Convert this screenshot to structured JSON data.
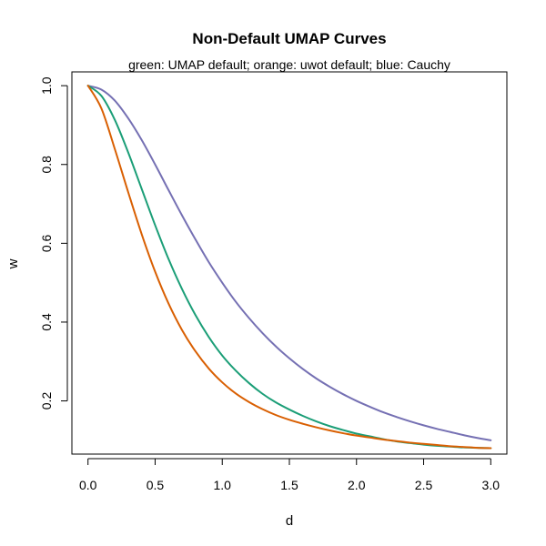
{
  "chart_data": {
    "type": "line",
    "title": "Non-Default UMAP Curves",
    "subtitle": "green: UMAP default; orange: uwot default; blue: Cauchy",
    "xlabel": "d",
    "ylabel": "w",
    "xlim": [
      -0.12,
      3.12
    ],
    "ylim": [
      0.065,
      1.035
    ],
    "xticks": [
      0.0,
      0.5,
      1.0,
      1.5,
      2.0,
      2.5,
      3.0
    ],
    "xtick_labels": [
      "0.0",
      "0.5",
      "1.0",
      "1.5",
      "2.0",
      "2.5",
      "3.0"
    ],
    "yticks": [
      0.2,
      0.4,
      0.6,
      0.8,
      1.0
    ],
    "ytick_labels": [
      "0.2",
      "0.4",
      "0.6",
      "0.8",
      "1.0"
    ],
    "grid": false,
    "legend": "none",
    "x": [
      0.0,
      0.1,
      0.2,
      0.3,
      0.4,
      0.5,
      0.6,
      0.7,
      0.8,
      0.9,
      1.0,
      1.1,
      1.2,
      1.3,
      1.4,
      1.5,
      1.6,
      1.7,
      1.8,
      1.9,
      2.0,
      2.1,
      2.2,
      2.3,
      2.4,
      2.5,
      2.6,
      2.7,
      2.8,
      2.9,
      3.0
    ],
    "series": [
      {
        "color": "#7570B3",
        "values": [
          1.0,
          0.99,
          0.962,
          0.917,
          0.862,
          0.8,
          0.735,
          0.671,
          0.61,
          0.552,
          0.5,
          0.452,
          0.41,
          0.372,
          0.338,
          0.308,
          0.281,
          0.257,
          0.236,
          0.217,
          0.2,
          0.185,
          0.171,
          0.159,
          0.148,
          0.138,
          0.129,
          0.121,
          0.113,
          0.106,
          0.1
        ]
      },
      {
        "color": "#1B9E77",
        "values": [
          1.0,
          0.974,
          0.913,
          0.83,
          0.738,
          0.646,
          0.56,
          0.484,
          0.418,
          0.362,
          0.315,
          0.277,
          0.245,
          0.218,
          0.196,
          0.178,
          0.162,
          0.148,
          0.136,
          0.126,
          0.117,
          0.11,
          0.103,
          0.097,
          0.093,
          0.089,
          0.086,
          0.084,
          0.082,
          0.081,
          0.08
        ]
      },
      {
        "color": "#D95F02",
        "values": [
          1.0,
          0.942,
          0.839,
          0.729,
          0.623,
          0.528,
          0.447,
          0.38,
          0.326,
          0.282,
          0.247,
          0.219,
          0.197,
          0.179,
          0.164,
          0.152,
          0.142,
          0.133,
          0.125,
          0.118,
          0.112,
          0.107,
          0.102,
          0.098,
          0.094,
          0.091,
          0.088,
          0.085,
          0.083,
          0.081,
          0.08
        ]
      }
    ]
  }
}
